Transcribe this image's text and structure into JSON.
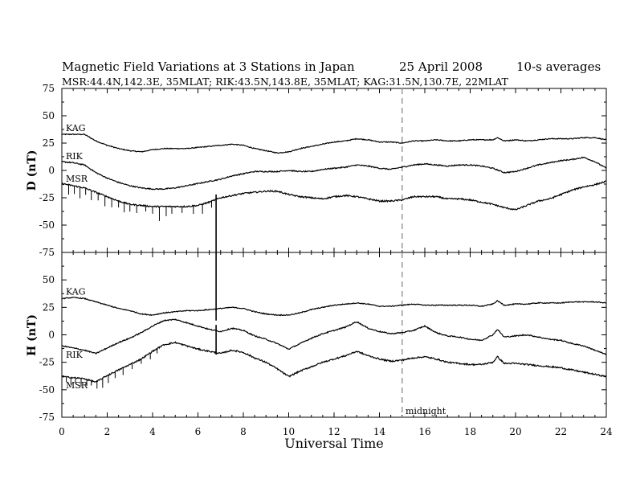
{
  "chart_data": {
    "type": "line",
    "title": "Magnetic Field Variations at 3 Stations in Japan",
    "date": "25  April     2008",
    "averaging": "10-s averages",
    "subtitle": "MSR:44.4N,142.3E, 35MLAT;  RIK:43.5N,143.8E, 35MLAT;  KAG:31.5N,130.7E, 22MLAT",
    "xlabel": "Universal Time",
    "xlim": [
      0,
      24
    ],
    "xticks": [
      "0",
      "2",
      "4",
      "6",
      "8",
      "10",
      "12",
      "14",
      "16",
      "18",
      "20",
      "22",
      "24"
    ],
    "midnight_ut": 15,
    "midnight_label": "midnight",
    "panels": [
      {
        "id": "D",
        "ylabel": "D (nT)",
        "ylim": [
          -75,
          75
        ],
        "yticks": [
          "75",
          "50",
          "25",
          "0",
          "-25",
          "-50",
          "-75"
        ],
        "series": [
          {
            "name": "KAG",
            "x": [
              0,
              0.5,
              1,
              1.5,
              2,
              2.5,
              3,
              3.5,
              4,
              4.5,
              5,
              5.5,
              6,
              6.5,
              7,
              7.5,
              8,
              8.5,
              9,
              9.5,
              10,
              10.5,
              11,
              11.5,
              12,
              12.5,
              13,
              13.5,
              14,
              14.5,
              15,
              15.5,
              16,
              16.5,
              17,
              17.5,
              18,
              18.5,
              19,
              19.2,
              19.5,
              20,
              20.5,
              21,
              21.5,
              22,
              22.5,
              23,
              23.5,
              24
            ],
            "values": [
              33,
              33,
              33,
              27,
              23,
              20,
              18,
              17,
              19,
              20,
              20,
              20,
              21,
              22,
              23,
              24,
              23,
              20,
              18,
              16,
              17,
              20,
              22,
              24,
              26,
              27,
              29,
              28,
              26,
              26,
              25,
              27,
              27,
              28,
              27,
              27,
              28,
              28,
              28,
              30,
              27,
              28,
              27,
              28,
              29,
              29,
              29,
              30,
              30,
              28
            ]
          },
          {
            "name": "RIK",
            "x": [
              0,
              0.5,
              1,
              1.5,
              2,
              2.5,
              3,
              3.5,
              4,
              4.5,
              5,
              5.5,
              6,
              6.5,
              7,
              7.5,
              8,
              8.5,
              9,
              9.5,
              10,
              10.5,
              11,
              11.5,
              12,
              12.5,
              13,
              13.5,
              14,
              14.5,
              15,
              15.5,
              16,
              16.5,
              17,
              17.5,
              18,
              18.5,
              19,
              19.5,
              20,
              20.5,
              21,
              21.5,
              22,
              22.5,
              23,
              23.5,
              24
            ],
            "values": [
              8,
              7,
              5,
              -2,
              -7,
              -11,
              -14,
              -16,
              -17,
              -17,
              -16,
              -14,
              -12,
              -10,
              -8,
              -5,
              -3,
              -1,
              -1,
              -1,
              0,
              -1,
              -1,
              1,
              2,
              3,
              5,
              4,
              2,
              1,
              3,
              5,
              6,
              5,
              4,
              5,
              5,
              4,
              2,
              -2,
              -1,
              2,
              5,
              7,
              9,
              10,
              12,
              8,
              2
            ]
          },
          {
            "name": "MSR",
            "x": [
              0,
              0.5,
              1,
              1.5,
              2,
              2.5,
              3,
              3.5,
              4,
              4.5,
              5,
              5.5,
              6,
              6.5,
              7,
              7.5,
              8,
              8.5,
              9,
              9.5,
              10,
              10.5,
              11,
              11.5,
              12,
              12.5,
              13,
              13.5,
              14,
              14.5,
              15,
              15.5,
              16,
              16.5,
              17,
              17.5,
              18,
              18.5,
              19,
              19.5,
              20,
              20.5,
              21,
              21.5,
              22,
              22.5,
              23,
              23.5,
              24
            ],
            "values": [
              -12,
              -14,
              -16,
              -20,
              -24,
              -28,
              -31,
              -32,
              -33,
              -33,
              -33,
              -33,
              -32,
              -29,
              -25,
              -23,
              -21,
              -20,
              -19,
              -19,
              -22,
              -24,
              -25,
              -26,
              -24,
              -23,
              -24,
              -26,
              -28,
              -28,
              -27,
              -24,
              -24,
              -24,
              -26,
              -26,
              -27,
              -29,
              -31,
              -34,
              -36,
              -32,
              -28,
              -26,
              -22,
              -18,
              -15,
              -13,
              -10
            ]
          }
        ]
      },
      {
        "id": "H",
        "ylabel": "H (nT)",
        "ylim": [
          -75,
          75
        ],
        "yticks": [
          "50",
          "25",
          "0",
          "-25",
          "-50",
          "-75"
        ],
        "series": [
          {
            "name": "KAG",
            "x": [
              0,
              0.5,
              1,
              1.5,
              2,
              2.5,
              3,
              3.5,
              4,
              4.5,
              5,
              5.5,
              6,
              6.5,
              7,
              7.5,
              8,
              8.5,
              9,
              9.5,
              10,
              10.5,
              11,
              11.5,
              12,
              12.5,
              13,
              13.5,
              14,
              14.5,
              15,
              15.5,
              16,
              16.5,
              17,
              17.5,
              18,
              18.5,
              19,
              19.2,
              19.5,
              20,
              20.5,
              21,
              21.5,
              22,
              22.5,
              23,
              23.5,
              24
            ],
            "values": [
              33,
              34,
              33,
              30,
              27,
              24,
              22,
              19,
              18,
              20,
              21,
              22,
              22,
              23,
              24,
              25,
              24,
              21,
              19,
              18,
              18,
              20,
              23,
              25,
              27,
              28,
              29,
              28,
              26,
              26,
              27,
              28,
              27,
              27,
              27,
              27,
              27,
              26,
              28,
              31,
              27,
              28,
              28,
              29,
              29,
              29,
              30,
              30,
              30,
              29
            ]
          },
          {
            "name": "RIK",
            "x": [
              0,
              0.5,
              1,
              1.5,
              2,
              2.5,
              3,
              3.5,
              4,
              4.5,
              5,
              5.5,
              6,
              6.5,
              7,
              7.5,
              8,
              8.5,
              9,
              9.5,
              10,
              10.5,
              11,
              11.5,
              12,
              12.5,
              13,
              13.5,
              14,
              14.5,
              15,
              15.5,
              16,
              16.5,
              17,
              17.5,
              18,
              18.5,
              19,
              19.2,
              19.5,
              20,
              20.5,
              21,
              21.5,
              22,
              22.5,
              23,
              23.5,
              24
            ],
            "values": [
              -10,
              -12,
              -14,
              -17,
              -12,
              -7,
              -3,
              2,
              8,
              13,
              14,
              11,
              8,
              5,
              3,
              6,
              4,
              -1,
              -4,
              -8,
              -13,
              -8,
              -3,
              1,
              4,
              7,
              12,
              6,
              3,
              1,
              2,
              4,
              8,
              2,
              -1,
              -2,
              -4,
              -5,
              0,
              5,
              -2,
              -1,
              0,
              -2,
              -4,
              -5,
              -8,
              -10,
              -14,
              -18
            ]
          },
          {
            "name": "MSR",
            "x": [
              0,
              0.5,
              1,
              1.5,
              2,
              2.5,
              3,
              3.5,
              4,
              4.5,
              5,
              5.5,
              6,
              6.5,
              7,
              7.5,
              8,
              8.5,
              9,
              9.5,
              10,
              10.5,
              11,
              11.5,
              12,
              12.5,
              13,
              13.5,
              14,
              14.5,
              15,
              15.5,
              16,
              16.5,
              17,
              17.5,
              18,
              18.5,
              19,
              19.2,
              19.5,
              20,
              20.5,
              21,
              21.5,
              22,
              22.5,
              23,
              23.5,
              24
            ],
            "values": [
              -38,
              -39,
              -40,
              -43,
              -37,
              -32,
              -27,
              -22,
              -15,
              -9,
              -7,
              -10,
              -13,
              -15,
              -17,
              -14,
              -16,
              -21,
              -25,
              -31,
              -38,
              -33,
              -29,
              -25,
              -22,
              -19,
              -15,
              -19,
              -22,
              -24,
              -23,
              -21,
              -20,
              -22,
              -25,
              -26,
              -27,
              -27,
              -25,
              -20,
              -26,
              -26,
              -27,
              -28,
              -29,
              -30,
              -32,
              -34,
              -36,
              -38
            ]
          }
        ]
      }
    ],
    "ticks": {
      "D_MSR": {
        "x": [
          0.3,
          0.55,
          0.8,
          1.05,
          1.3,
          1.6,
          1.9,
          2.2,
          2.5,
          2.75,
          3.0,
          3.3,
          3.7,
          4.0,
          4.3,
          4.6,
          4.85,
          5.3,
          5.8,
          6.2,
          6.6
        ],
        "len": [
          12,
          10,
          14,
          8,
          12,
          9,
          13,
          11,
          8,
          12,
          9,
          10,
          7,
          9,
          18,
          12,
          9,
          8,
          10,
          12,
          8
        ]
      },
      "H_MSR": {
        "x": [
          0.2,
          0.4,
          0.6,
          0.85,
          1.1,
          1.3,
          1.55,
          1.8,
          2.05,
          2.35,
          2.7,
          3.1,
          3.5,
          3.9,
          4.2
        ],
        "len": [
          6,
          9,
          7,
          10,
          8,
          6,
          9,
          12,
          10,
          8,
          9,
          7,
          6,
          8,
          6
        ]
      }
    },
    "spike_ut": 6.8,
    "legend": "labels-on-curves",
    "grid": false
  }
}
